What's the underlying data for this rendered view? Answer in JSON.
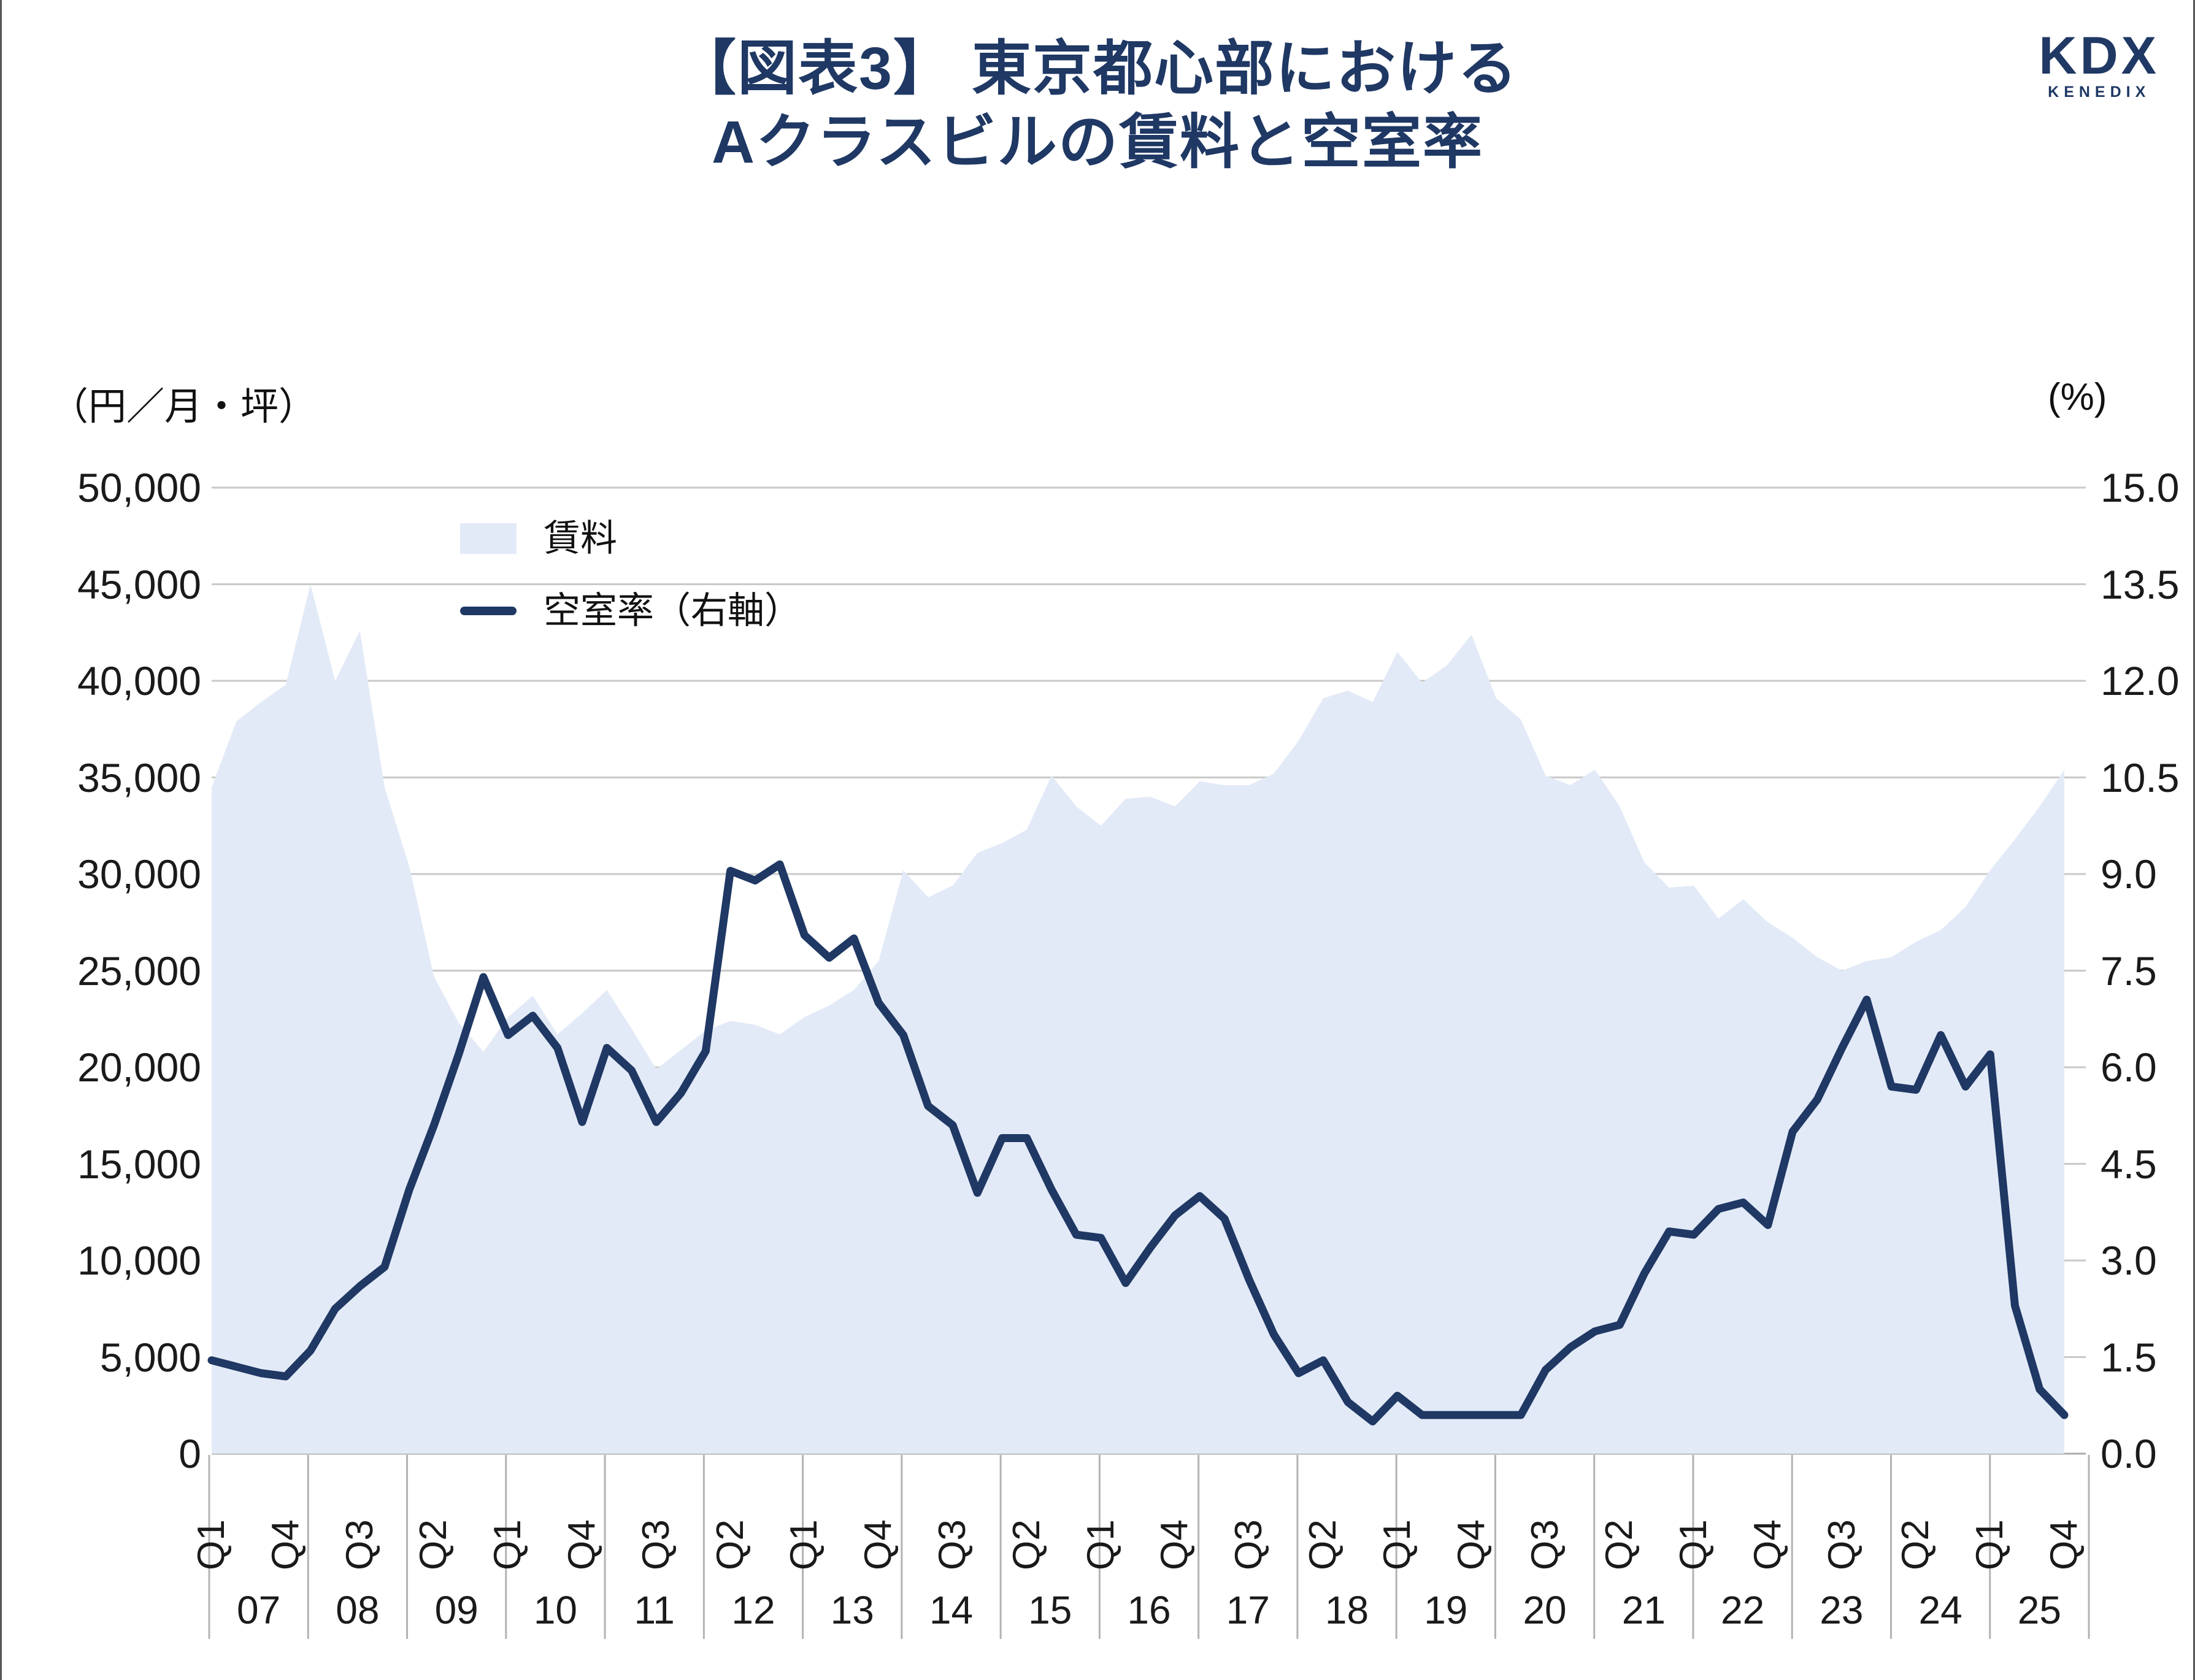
{
  "header": {
    "title_line1": "【図表3】 東京都心部における",
    "title_line2": "Aクラスビルの賃料と空室率",
    "title_color": "#1f3864"
  },
  "logo": {
    "kdx": "KDX",
    "kenedix": "KENEDIX"
  },
  "legend": {
    "rent_label": "賃料",
    "vacancy_label": "空室率（右軸）"
  },
  "axes": {
    "left_unit": "（円／月・坪）",
    "right_unit": "(%)",
    "left_ticks": [
      "50,000",
      "45,000",
      "40,000",
      "35,000",
      "30,000",
      "25,000",
      "20,000",
      "15,000",
      "10,000",
      "5,000",
      "0"
    ],
    "right_ticks": [
      "15.0",
      "13.5",
      "12.0",
      "10.5",
      "9.0",
      "7.5",
      "6.0",
      "4.5",
      "3.0",
      "1.5",
      "0.0"
    ],
    "quarter_labels": [
      "Q1",
      "Q4",
      "Q3",
      "Q2",
      "Q1",
      "Q4",
      "Q3",
      "Q2",
      "Q1",
      "Q4",
      "Q3",
      "Q2",
      "Q1",
      "Q4",
      "Q3",
      "Q2",
      "Q1",
      "Q4",
      "Q3",
      "Q2",
      "Q1",
      "Q4",
      "Q3",
      "Q2",
      "Q1",
      "Q4"
    ],
    "year_labels": [
      "07",
      "08",
      "09",
      "10",
      "11",
      "12",
      "13",
      "14",
      "15",
      "16",
      "17",
      "18",
      "19",
      "20",
      "21",
      "22",
      "23",
      "24",
      "25"
    ]
  },
  "chart_data": {
    "type": "area",
    "note": "combo chart: rent = area on left axis, vacancy rate = line on right axis",
    "x": [
      "2007Q1",
      "2007Q2",
      "2007Q3",
      "2007Q4",
      "2008Q1",
      "2008Q2",
      "2008Q3",
      "2008Q4",
      "2009Q1",
      "2009Q2",
      "2009Q3",
      "2009Q4",
      "2010Q1",
      "2010Q2",
      "2010Q3",
      "2010Q4",
      "2011Q1",
      "2011Q2",
      "2011Q3",
      "2011Q4",
      "2012Q1",
      "2012Q2",
      "2012Q3",
      "2012Q4",
      "2013Q1",
      "2013Q2",
      "2013Q3",
      "2013Q4",
      "2014Q1",
      "2014Q2",
      "2014Q3",
      "2014Q4",
      "2015Q1",
      "2015Q2",
      "2015Q3",
      "2015Q4",
      "2016Q1",
      "2016Q2",
      "2016Q3",
      "2016Q4",
      "2017Q1",
      "2017Q2",
      "2017Q3",
      "2017Q4",
      "2018Q1",
      "2018Q2",
      "2018Q3",
      "2018Q4",
      "2019Q1",
      "2019Q2",
      "2019Q3",
      "2019Q4",
      "2020Q1",
      "2020Q2",
      "2020Q3",
      "2020Q4",
      "2021Q1",
      "2021Q2",
      "2021Q3",
      "2021Q4",
      "2022Q1",
      "2022Q2",
      "2022Q3",
      "2022Q4",
      "2023Q1",
      "2023Q2",
      "2023Q3",
      "2023Q4",
      "2024Q1",
      "2024Q2",
      "2024Q3",
      "2024Q4",
      "2025Q1",
      "2025Q2",
      "2025Q3",
      "2025Q4"
    ],
    "series": [
      {
        "name": "賃料",
        "type": "area",
        "axis": "left",
        "color": "#e3eaf7",
        "values": [
          34500,
          37900,
          38900,
          39800,
          45000,
          40000,
          42600,
          34500,
          30400,
          24700,
          22300,
          20800,
          22600,
          23700,
          21700,
          22800,
          24000,
          22000,
          19900,
          20900,
          21900,
          22400,
          22200,
          21700,
          22600,
          23200,
          24000,
          25500,
          30200,
          28800,
          29400,
          31100,
          31600,
          32300,
          35100,
          33500,
          32500,
          33900,
          34000,
          33500,
          34800,
          34600,
          34600,
          35200,
          36900,
          39100,
          39500,
          38900,
          41500,
          39900,
          40800,
          42400,
          39100,
          38000,
          35100,
          34600,
          35400,
          33500,
          30600,
          29300,
          29400,
          27700,
          28700,
          27500,
          26700,
          25700,
          25000,
          25500,
          25700,
          26500,
          27100,
          28300,
          30200,
          31800,
          33500,
          35400
        ]
      },
      {
        "name": "空室率（右軸）",
        "type": "line",
        "axis": "right",
        "color": "#1f3864",
        "values": [
          1.45,
          1.35,
          1.25,
          1.2,
          1.6,
          2.25,
          2.6,
          2.9,
          4.1,
          5.1,
          6.2,
          7.4,
          6.5,
          6.8,
          6.3,
          5.15,
          6.3,
          5.95,
          5.15,
          5.6,
          6.25,
          9.05,
          8.9,
          9.15,
          8.05,
          7.7,
          8.0,
          7.0,
          6.5,
          5.4,
          5.1,
          4.05,
          4.9,
          4.9,
          4.1,
          3.4,
          3.35,
          2.65,
          3.2,
          3.7,
          4.0,
          3.65,
          2.7,
          1.85,
          1.25,
          1.45,
          0.8,
          0.5,
          0.9,
          0.6,
          0.6,
          0.6,
          0.6,
          0.6,
          1.3,
          1.65,
          1.9,
          2.0,
          2.8,
          3.45,
          3.4,
          3.8,
          3.9,
          3.55,
          5.0,
          5.5,
          6.3,
          7.05,
          5.7,
          5.65,
          6.5,
          5.7,
          6.2,
          2.3,
          1.0,
          0.6
        ]
      }
    ],
    "left_axis": {
      "min": 0,
      "max": 50000,
      "step": 5000
    },
    "right_axis": {
      "min": 0,
      "max": 15,
      "step": 1.5
    },
    "grid": true,
    "legend_position": "inside-top-left"
  }
}
